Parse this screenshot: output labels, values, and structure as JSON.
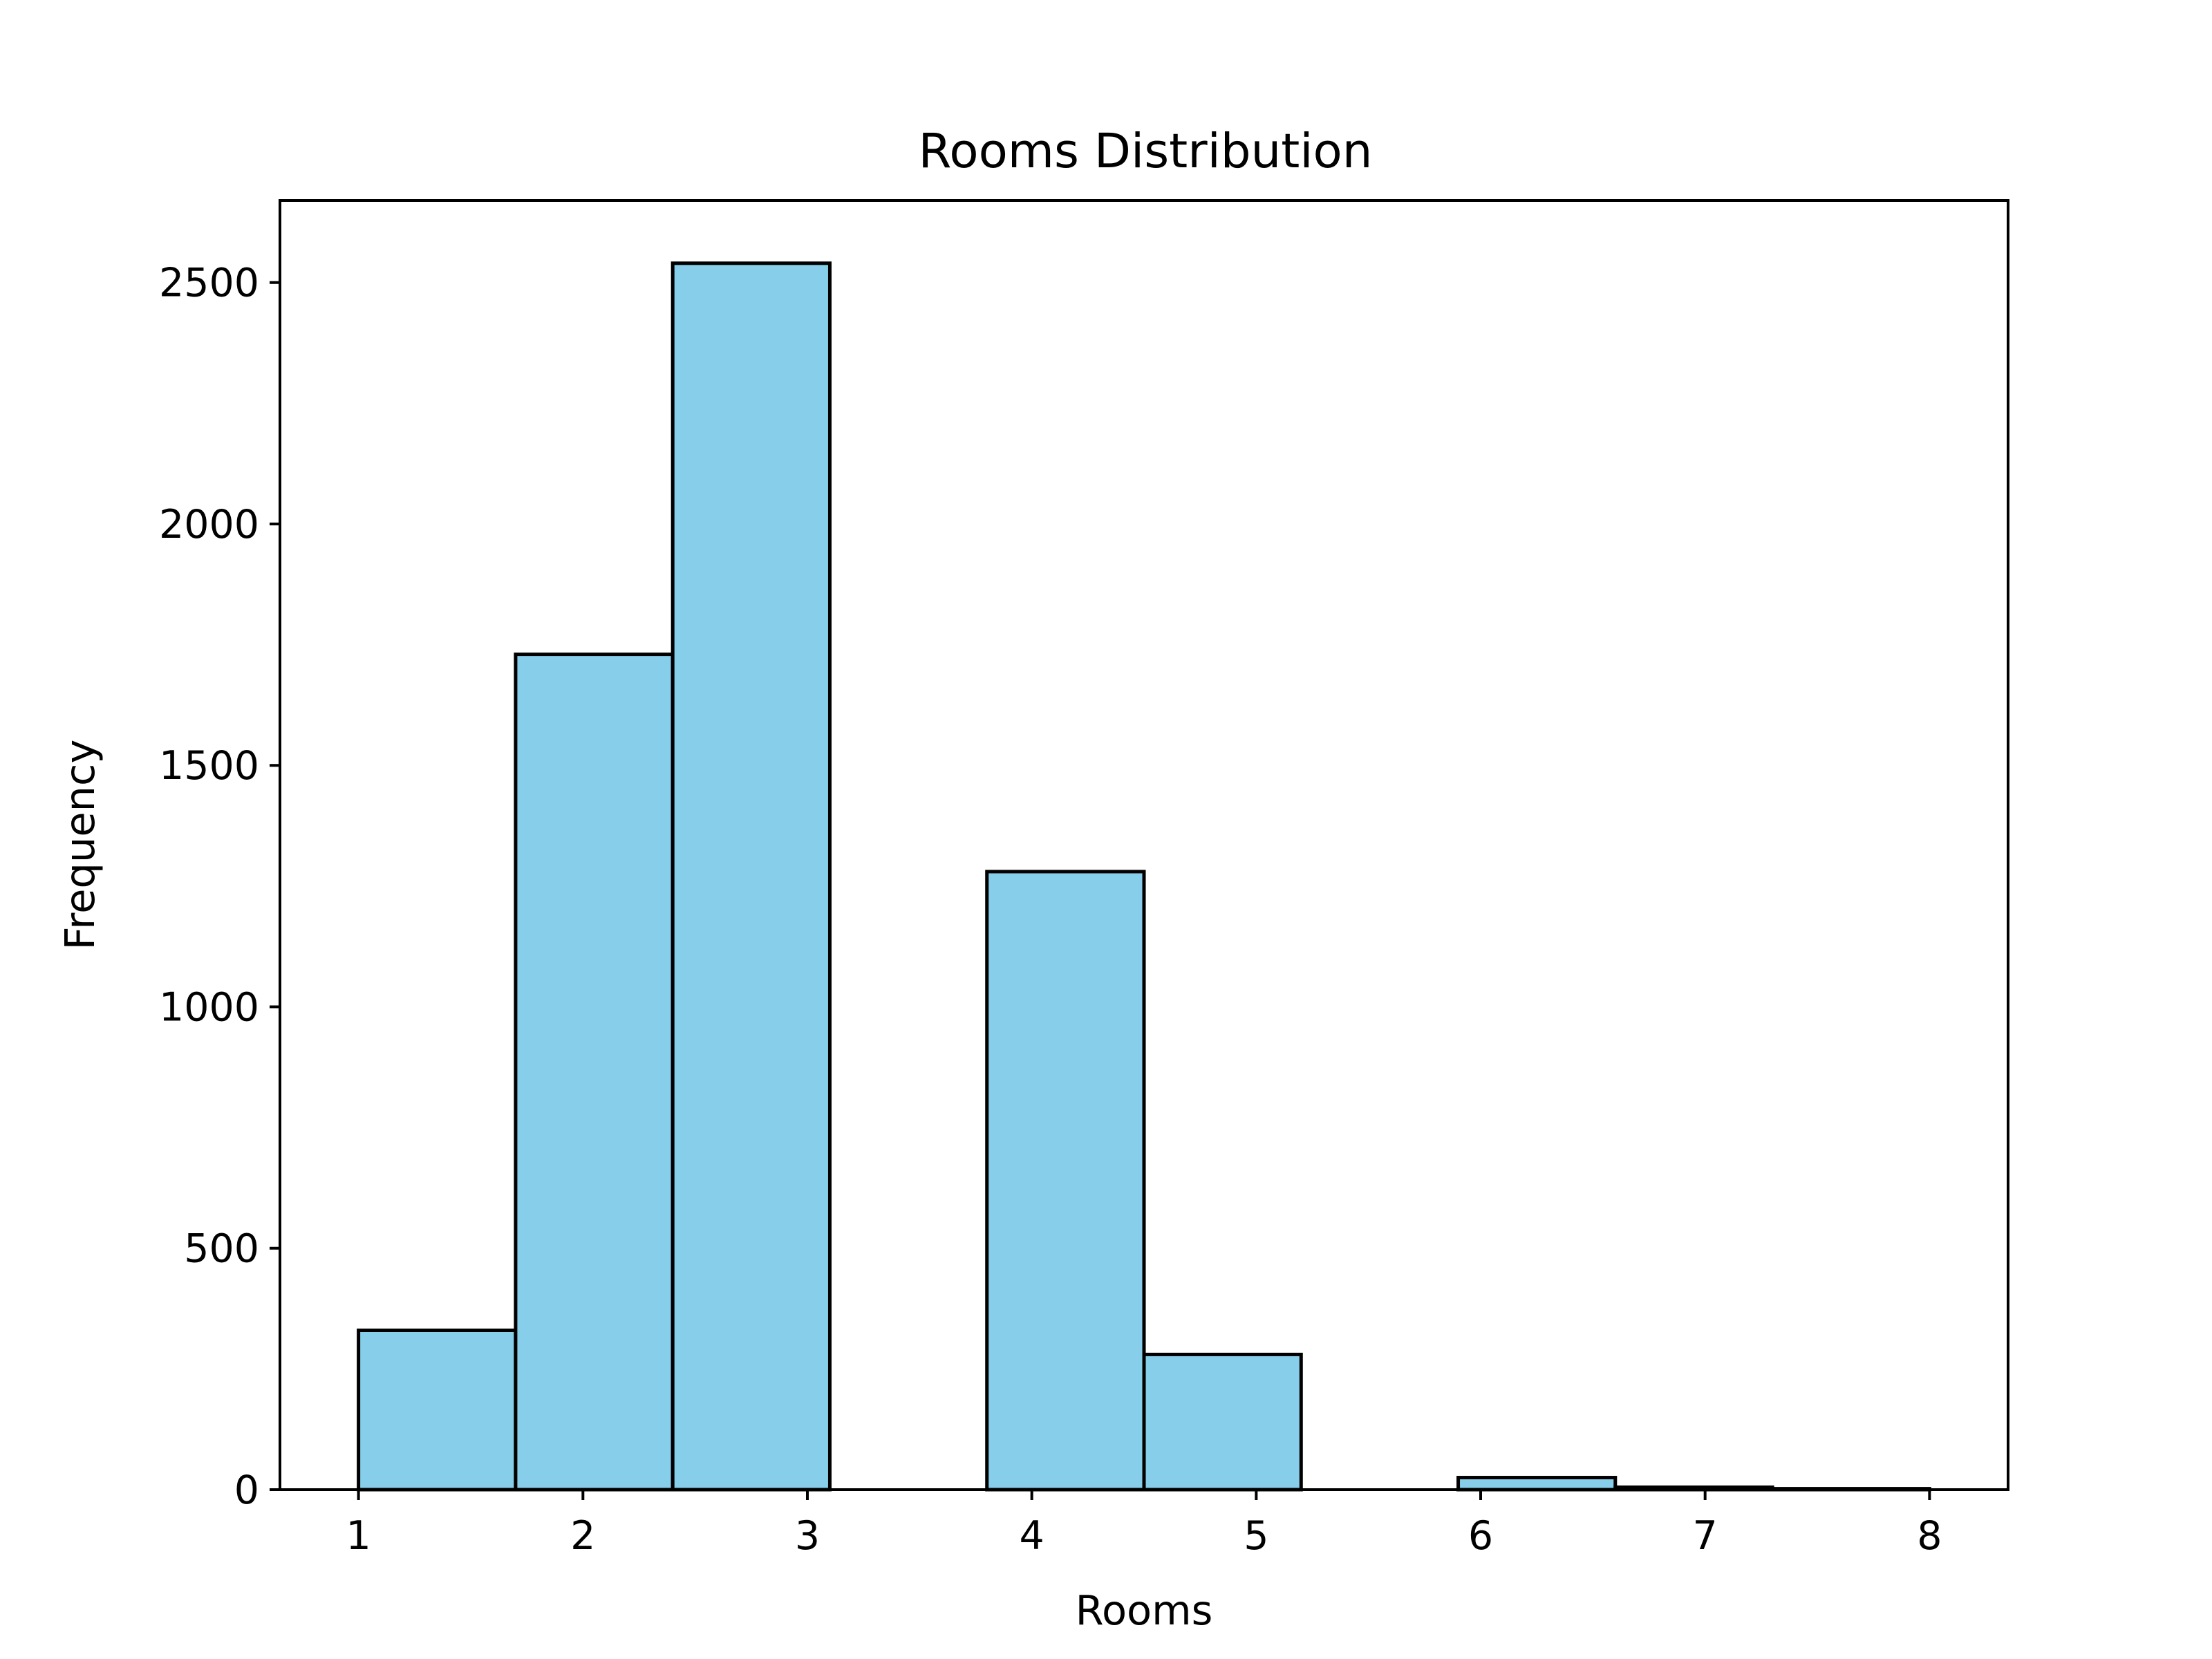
{
  "chart_data": {
    "type": "bar",
    "title": "Rooms Distribution",
    "xlabel": "Rooms",
    "ylabel": "Frequency",
    "xlim": [
      0.65,
      8.35
    ],
    "ylim": [
      0,
      2670
    ],
    "x_ticks": [
      1,
      2,
      3,
      4,
      5,
      6,
      7,
      8
    ],
    "y_ticks": [
      0,
      500,
      1000,
      1500,
      2000,
      2500
    ],
    "bins": [
      {
        "start": 1.0,
        "end": 1.7,
        "count": 330
      },
      {
        "start": 1.7,
        "end": 2.4,
        "count": 1730
      },
      {
        "start": 2.4,
        "end": 3.1,
        "count": 2540
      },
      {
        "start": 3.1,
        "end": 3.8,
        "count": 0
      },
      {
        "start": 3.8,
        "end": 4.5,
        "count": 1280
      },
      {
        "start": 4.5,
        "end": 5.2,
        "count": 280
      },
      {
        "start": 5.2,
        "end": 5.9,
        "count": 0
      },
      {
        "start": 5.9,
        "end": 6.6,
        "count": 25
      },
      {
        "start": 6.6,
        "end": 7.3,
        "count": 5
      },
      {
        "start": 7.3,
        "end": 8.0,
        "count": 2
      }
    ],
    "bar_color": "#87CEEB",
    "edge_color": "#000000",
    "grid": false,
    "legend": "none"
  }
}
